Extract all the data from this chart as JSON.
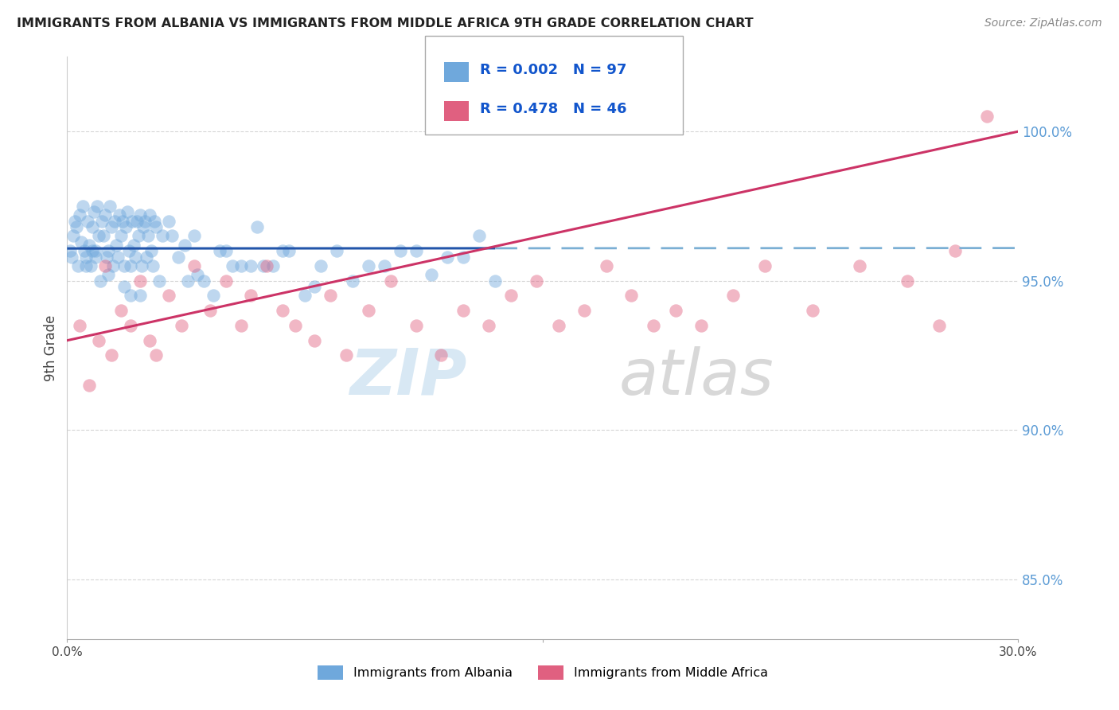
{
  "title": "IMMIGRANTS FROM ALBANIA VS IMMIGRANTS FROM MIDDLE AFRICA 9TH GRADE CORRELATION CHART",
  "source": "Source: ZipAtlas.com",
  "ylabel": "9th Grade",
  "xlim": [
    0.0,
    30.0
  ],
  "ylim": [
    83.0,
    102.5
  ],
  "yticks": [
    85.0,
    90.0,
    95.0,
    100.0
  ],
  "color_albania": "#6fa8dc",
  "color_middle_africa": "#e06080",
  "color_albania_line_solid": "#2255aa",
  "color_albania_line_dash": "#7bafd4",
  "color_middle_africa_line": "#cc3366",
  "legend_albania_r": "0.002",
  "legend_albania_n": "97",
  "legend_middle_africa_r": "0.478",
  "legend_middle_africa_n": "46",
  "legend_color_r": "#1155cc",
  "legend_color_n": "#cc0000",
  "watermark_zip_color": "#c8dff0",
  "watermark_atlas_color": "#c8c8c8",
  "background_color": "#ffffff",
  "grid_color": "#cccccc",
  "ytick_color": "#5b9bd5",
  "albania_x": [
    0.1,
    0.15,
    0.2,
    0.25,
    0.3,
    0.35,
    0.4,
    0.45,
    0.5,
    0.55,
    0.6,
    0.65,
    0.7,
    0.75,
    0.8,
    0.85,
    0.9,
    0.95,
    1.0,
    1.05,
    1.1,
    1.15,
    1.2,
    1.25,
    1.3,
    1.35,
    1.4,
    1.45,
    1.5,
    1.55,
    1.6,
    1.65,
    1.7,
    1.75,
    1.8,
    1.85,
    1.9,
    1.95,
    2.0,
    2.05,
    2.1,
    2.15,
    2.2,
    2.25,
    2.3,
    2.35,
    2.4,
    2.45,
    2.5,
    2.55,
    2.6,
    2.65,
    2.7,
    2.75,
    2.8,
    3.0,
    3.2,
    3.5,
    3.7,
    4.0,
    4.3,
    4.6,
    5.0,
    5.5,
    6.0,
    6.5,
    7.0,
    7.5,
    8.0,
    8.5,
    9.0,
    10.0,
    11.0,
    12.0,
    13.0,
    13.5,
    5.2,
    4.8,
    3.3,
    3.8,
    6.2,
    2.9,
    1.8,
    2.0,
    1.3,
    0.8,
    0.6,
    0.9,
    2.3,
    4.1,
    5.8,
    6.8,
    7.8,
    9.5,
    10.5,
    11.5,
    12.5
  ],
  "albania_y": [
    96.0,
    95.8,
    96.5,
    97.0,
    96.8,
    95.5,
    97.2,
    96.3,
    97.5,
    96.0,
    95.8,
    97.0,
    96.2,
    95.5,
    96.8,
    97.3,
    96.0,
    97.5,
    96.5,
    95.0,
    97.0,
    96.5,
    97.2,
    95.8,
    96.0,
    97.5,
    96.8,
    95.5,
    97.0,
    96.2,
    95.8,
    97.2,
    96.5,
    97.0,
    95.5,
    96.8,
    97.3,
    96.0,
    95.5,
    97.0,
    96.2,
    95.8,
    97.0,
    96.5,
    97.2,
    95.5,
    96.8,
    97.0,
    95.8,
    96.5,
    97.2,
    96.0,
    95.5,
    97.0,
    96.8,
    96.5,
    97.0,
    95.8,
    96.2,
    96.5,
    95.0,
    94.5,
    96.0,
    95.5,
    96.8,
    95.5,
    96.0,
    94.5,
    95.5,
    96.0,
    95.0,
    95.5,
    96.0,
    95.8,
    96.5,
    95.0,
    95.5,
    96.0,
    96.5,
    95.0,
    95.5,
    95.0,
    94.8,
    94.5,
    95.2,
    96.0,
    95.5,
    95.8,
    94.5,
    95.2,
    95.5,
    96.0,
    94.8,
    95.5,
    96.0,
    95.2,
    95.8
  ],
  "middle_africa_x": [
    0.4,
    0.7,
    1.0,
    1.2,
    1.4,
    1.7,
    2.0,
    2.3,
    2.6,
    2.8,
    3.2,
    3.6,
    4.0,
    4.5,
    5.0,
    5.5,
    5.8,
    6.3,
    6.8,
    7.2,
    7.8,
    8.3,
    8.8,
    9.5,
    10.2,
    11.0,
    11.8,
    12.5,
    13.3,
    14.0,
    14.8,
    15.5,
    16.3,
    17.0,
    17.8,
    18.5,
    19.2,
    20.0,
    21.0,
    22.0,
    23.5,
    25.0,
    26.5,
    27.5,
    28.0,
    29.0
  ],
  "middle_africa_y": [
    93.5,
    91.5,
    93.0,
    95.5,
    92.5,
    94.0,
    93.5,
    95.0,
    93.0,
    92.5,
    94.5,
    93.5,
    95.5,
    94.0,
    95.0,
    93.5,
    94.5,
    95.5,
    94.0,
    93.5,
    93.0,
    94.5,
    92.5,
    94.0,
    95.0,
    93.5,
    92.5,
    94.0,
    93.5,
    94.5,
    95.0,
    93.5,
    94.0,
    95.5,
    94.5,
    93.5,
    94.0,
    93.5,
    94.5,
    95.5,
    94.0,
    95.5,
    95.0,
    93.5,
    96.0,
    100.5
  ]
}
